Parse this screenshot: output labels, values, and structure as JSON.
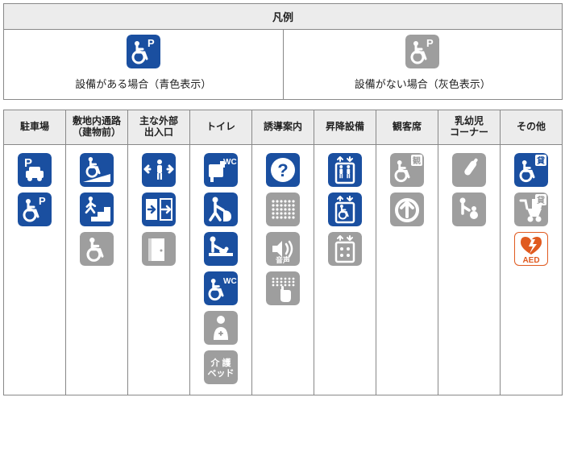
{
  "colors": {
    "available": "#1a4fa0",
    "unavailable": "#9e9e9e",
    "white": "#ffffff",
    "aed_bg": "#ffffff",
    "aed_red": "#e05a1f",
    "header_bg": "#ececec",
    "border": "#888888"
  },
  "icon_size": 42,
  "legend": {
    "title": "凡例",
    "available_label": "設備がある場合（青色表示）",
    "unavailable_label": "設備がない場合（灰色表示）"
  },
  "headers": [
    "駐車場",
    "敷地内通路\n（建物前）",
    "主な外部\n出入口",
    "トイレ",
    "誘導案内",
    "昇降設備",
    "観客席",
    "乳幼児\nコーナー",
    "その他"
  ],
  "columns": [
    [
      {
        "type": "parking_car",
        "color": "available"
      },
      {
        "type": "wheelchair_p",
        "color": "available"
      }
    ],
    [
      {
        "type": "wheelchair_ramp",
        "color": "available"
      },
      {
        "type": "stairs_person",
        "color": "available"
      },
      {
        "type": "wheelchair",
        "color": "unavailable"
      }
    ],
    [
      {
        "type": "door_arrows",
        "color": "available"
      },
      {
        "type": "auto_door",
        "color": "available"
      },
      {
        "type": "door_plain",
        "color": "unavailable"
      }
    ],
    [
      {
        "type": "wc",
        "color": "available"
      },
      {
        "type": "ostomate",
        "color": "available"
      },
      {
        "type": "baby_change",
        "color": "available"
      },
      {
        "type": "wheelchair_wc",
        "color": "available"
      },
      {
        "type": "nurse",
        "color": "unavailable"
      },
      {
        "type": "care_bed",
        "color": "unavailable"
      }
    ],
    [
      {
        "type": "question",
        "color": "available"
      },
      {
        "type": "braille_grid",
        "color": "unavailable"
      },
      {
        "type": "audio",
        "color": "unavailable",
        "caption": "音声"
      },
      {
        "type": "touch",
        "color": "unavailable"
      }
    ],
    [
      {
        "type": "elevator",
        "color": "available"
      },
      {
        "type": "elevator_wc",
        "color": "available"
      },
      {
        "type": "elevator_ctrl",
        "color": "unavailable"
      }
    ],
    [
      {
        "type": "wheelchair_seat",
        "color": "unavailable",
        "badge": "観"
      },
      {
        "type": "arrow_up",
        "color": "unavailable"
      }
    ],
    [
      {
        "type": "bottle",
        "color": "unavailable"
      },
      {
        "type": "baby_pair",
        "color": "unavailable"
      }
    ],
    [
      {
        "type": "wheelchair_rent",
        "color": "available",
        "badge": "貸"
      },
      {
        "type": "stroller_rent",
        "color": "unavailable",
        "badge": "貸"
      },
      {
        "type": "aed",
        "color": "aed"
      }
    ]
  ]
}
